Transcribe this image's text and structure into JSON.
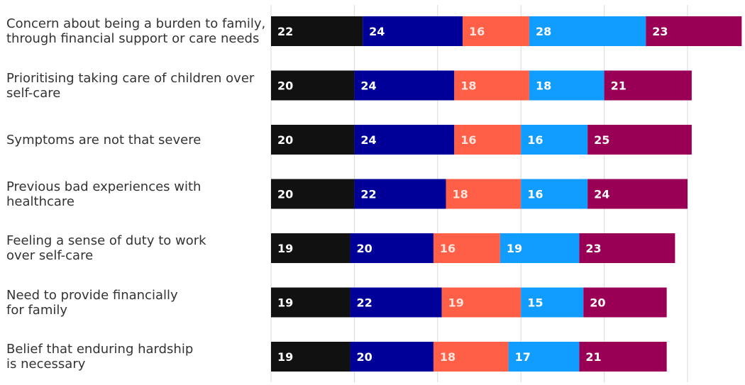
{
  "chart_data": {
    "type": "bar",
    "orientation": "horizontal",
    "stacked": true,
    "categories": [
      [
        "Concern about being a burden to family,",
        "through financial support or care needs"
      ],
      [
        "Prioritising taking care of children over",
        "self-care"
      ],
      [
        "Symptoms are not that severe"
      ],
      [
        "Previous bad experiences with",
        "healthcare"
      ],
      [
        "Feeling a sense of duty to work",
        "over self-care"
      ],
      [
        "Need to provide financially",
        "for family"
      ],
      [
        "Belief that enduring hardship",
        "is necessary"
      ]
    ],
    "series": [
      {
        "values": [
          22,
          20,
          20,
          20,
          19,
          19,
          19
        ],
        "color": "#111111"
      },
      {
        "values": [
          24,
          24,
          24,
          22,
          20,
          22,
          20
        ],
        "color": "#000099"
      },
      {
        "values": [
          16,
          18,
          16,
          18,
          16,
          19,
          18
        ],
        "color": "#ff5f46"
      },
      {
        "values": [
          28,
          18,
          16,
          16,
          19,
          15,
          17
        ],
        "color": "#109dff"
      },
      {
        "values": [
          23,
          21,
          25,
          24,
          23,
          20,
          21
        ],
        "color": "#990055"
      }
    ],
    "grid": true,
    "xlim": [
      0,
      115
    ]
  }
}
